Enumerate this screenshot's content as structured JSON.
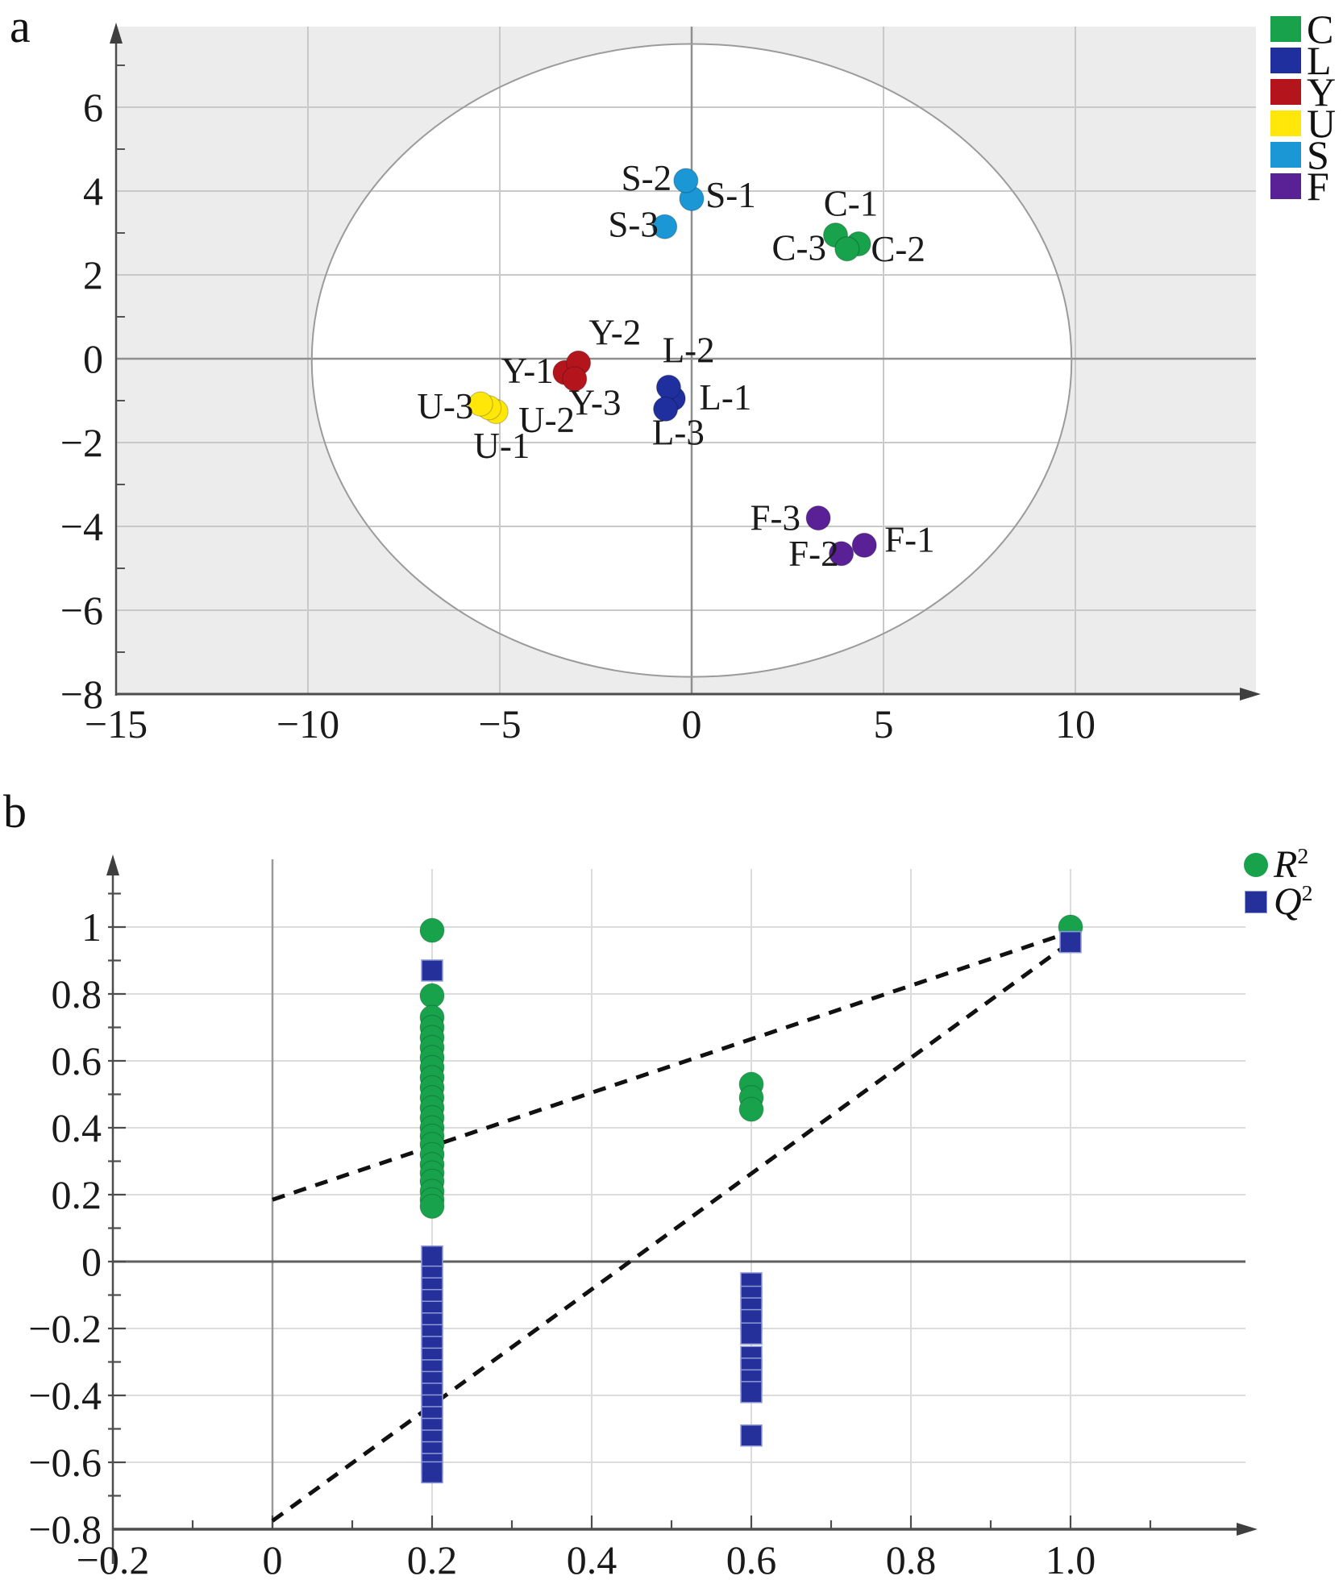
{
  "chart_data": [
    {
      "id": "panel_a",
      "type": "scatter",
      "panel_label": "a",
      "description": "PLS-DA score scatter plot with Hotelling T2 ellipse",
      "axes": {
        "xlim": [
          -15,
          14.5
        ],
        "ylim": [
          -8,
          7.9
        ],
        "x_ticks": [
          "−15",
          "−10",
          "−5",
          "0",
          "5",
          "10"
        ],
        "x_tick_values": [
          -15,
          -10,
          -5,
          0,
          5,
          10
        ],
        "y_ticks": [
          "6",
          "4",
          "2",
          "0",
          "−2",
          "−4",
          "−6",
          "−8"
        ],
        "y_tick_values": [
          6,
          4,
          2,
          0,
          -2,
          -4,
          -6,
          -8
        ],
        "grid": true,
        "plot_background": "#ececec"
      },
      "hotelling_ellipse": {
        "cx": 0,
        "cy": -0.04,
        "rx": 9.9,
        "ry": 7.55
      },
      "legend_position": "top-right-outside",
      "legend": [
        {
          "label": "C",
          "color": "#17a24b"
        },
        {
          "label": "L",
          "color": "#1f309e"
        },
        {
          "label": "Y",
          "color": "#b4151d"
        },
        {
          "label": "U",
          "color": "#ffe70a"
        },
        {
          "label": "S",
          "color": "#1b97d5"
        },
        {
          "label": "F",
          "color": "#5a2196"
        }
      ],
      "series": [
        {
          "name": "C",
          "color": "#17a24b",
          "points": [
            {
              "label": "C-1",
              "x": 3.75,
              "y": 2.95,
              "lx": 4.15,
              "ly": 3.72
            },
            {
              "label": "C-2",
              "x": 4.35,
              "y": 2.74,
              "lx": 5.38,
              "ly": 2.63
            },
            {
              "label": "C-3",
              "x": 4.05,
              "y": 2.62,
              "lx": 2.8,
              "ly": 2.66
            }
          ]
        },
        {
          "name": "L",
          "color": "#1f309e",
          "points": [
            {
              "label": "L-1",
              "x": -0.48,
              "y": -0.95,
              "lx": 0.88,
              "ly": -0.9
            },
            {
              "label": "L-2",
              "x": -0.6,
              "y": -0.68,
              "lx": -0.08,
              "ly": 0.22
            },
            {
              "label": "L-3",
              "x": -0.68,
              "y": -1.2,
              "lx": -0.35,
              "ly": -1.74
            }
          ]
        },
        {
          "name": "Y",
          "color": "#b4151d",
          "points": [
            {
              "label": "Y-1",
              "x": -3.3,
              "y": -0.33,
              "lx": -4.28,
              "ly": -0.27
            },
            {
              "label": "Y-2",
              "x": -2.95,
              "y": -0.1,
              "lx": -2.0,
              "ly": 0.64
            },
            {
              "label": "Y-3",
              "x": -3.05,
              "y": -0.48,
              "lx": -2.52,
              "ly": -1.03
            }
          ]
        },
        {
          "name": "U",
          "color": "#ffe70a",
          "points": [
            {
              "label": "U-1",
              "x": -5.1,
              "y": -1.26,
              "lx": -4.95,
              "ly": -2.06
            },
            {
              "label": "U-2",
              "x": -5.28,
              "y": -1.17,
              "lx": -3.78,
              "ly": -1.44
            },
            {
              "label": "U-3",
              "x": -5.5,
              "y": -1.08,
              "lx": -6.42,
              "ly": -1.12
            }
          ]
        },
        {
          "name": "S",
          "color": "#1b97d5",
          "points": [
            {
              "label": "S-1",
              "x": 0.0,
              "y": 3.82,
              "lx": 1.02,
              "ly": 3.92
            },
            {
              "label": "S-2",
              "x": -0.15,
              "y": 4.25,
              "lx": -1.18,
              "ly": 4.33
            },
            {
              "label": "S-3",
              "x": -0.7,
              "y": 3.15,
              "lx": -1.52,
              "ly": 3.22
            }
          ]
        },
        {
          "name": "F",
          "color": "#5a2196",
          "points": [
            {
              "label": "F-1",
              "x": 4.5,
              "y": -4.45,
              "lx": 5.68,
              "ly": -4.3
            },
            {
              "label": "F-2",
              "x": 3.9,
              "y": -4.65,
              "lx": 3.18,
              "ly": -4.63
            },
            {
              "label": "F-3",
              "x": 3.3,
              "y": -3.8,
              "lx": 2.18,
              "ly": -3.78
            }
          ]
        }
      ]
    },
    {
      "id": "panel_b",
      "type": "scatter",
      "panel_label": "b",
      "description": "Permutation test validation plot (R2 and Q2 vs correlation)",
      "axes": {
        "xlim": [
          -0.2,
          1.18
        ],
        "ylim": [
          -0.8,
          1.12
        ],
        "x_ticks": [
          "−0.2",
          "0",
          "0.2",
          "0.4",
          "0.6",
          "0.8",
          "1.0"
        ],
        "x_tick_values": [
          -0.2,
          0,
          0.2,
          0.4,
          0.6,
          0.8,
          1.0
        ],
        "y_ticks": [
          "1",
          "0.8",
          "0.6",
          "0.4",
          "0.2",
          "0",
          "−0.2",
          "−0.4",
          "−0.6",
          "−0.8"
        ],
        "y_tick_values": [
          1,
          0.8,
          0.6,
          0.4,
          0.2,
          0,
          -0.2,
          -0.4,
          -0.6,
          -0.8
        ],
        "grid": true,
        "plot_background": "#ffffff"
      },
      "legend_position": "top-right-outside",
      "legend": [
        {
          "label": "R",
          "sup": "2",
          "marker": "circle",
          "color": "#17a24b"
        },
        {
          "label": "Q",
          "sup": "2",
          "marker": "square",
          "color": "#26309b"
        }
      ],
      "series": [
        {
          "name": "R2",
          "marker": "circle",
          "color": "#17a24b",
          "points": [
            [
              0.2,
              0.99
            ],
            [
              0.2,
              0.795
            ],
            [
              0.2,
              0.73
            ],
            [
              0.2,
              0.7
            ],
            [
              0.2,
              0.67
            ],
            [
              0.2,
              0.64
            ],
            [
              0.2,
              0.61
            ],
            [
              0.2,
              0.58
            ],
            [
              0.2,
              0.55
            ],
            [
              0.2,
              0.52
            ],
            [
              0.2,
              0.49
            ],
            [
              0.2,
              0.46
            ],
            [
              0.2,
              0.43
            ],
            [
              0.2,
              0.4
            ],
            [
              0.2,
              0.375
            ],
            [
              0.2,
              0.35
            ],
            [
              0.2,
              0.32
            ],
            [
              0.2,
              0.29
            ],
            [
              0.2,
              0.265
            ],
            [
              0.2,
              0.24
            ],
            [
              0.2,
              0.21
            ],
            [
              0.2,
              0.185
            ],
            [
              0.2,
              0.165
            ],
            [
              0.6,
              0.53
            ],
            [
              0.6,
              0.49
            ],
            [
              0.6,
              0.455
            ],
            [
              1.0,
              1.0
            ]
          ]
        },
        {
          "name": "Q2",
          "marker": "square",
          "color": "#26309b",
          "points": [
            [
              0.2,
              0.87
            ],
            [
              0.2,
              0.015
            ],
            [
              0.2,
              -0.045
            ],
            [
              0.2,
              -0.08
            ],
            [
              0.2,
              -0.115
            ],
            [
              0.2,
              -0.15
            ],
            [
              0.2,
              -0.185
            ],
            [
              0.2,
              -0.22
            ],
            [
              0.2,
              -0.255
            ],
            [
              0.2,
              -0.29
            ],
            [
              0.2,
              -0.325
            ],
            [
              0.2,
              -0.36
            ],
            [
              0.2,
              -0.395
            ],
            [
              0.2,
              -0.43
            ],
            [
              0.2,
              -0.465
            ],
            [
              0.2,
              -0.5
            ],
            [
              0.2,
              -0.535
            ],
            [
              0.2,
              -0.57
            ],
            [
              0.2,
              -0.605
            ],
            [
              0.2,
              -0.63
            ],
            [
              0.6,
              -0.065
            ],
            [
              0.6,
              -0.105
            ],
            [
              0.6,
              -0.14
            ],
            [
              0.6,
              -0.175
            ],
            [
              0.6,
              -0.215
            ],
            [
              0.6,
              -0.285
            ],
            [
              0.6,
              -0.32
            ],
            [
              0.6,
              -0.355
            ],
            [
              0.6,
              -0.39
            ],
            [
              0.6,
              -0.52
            ],
            [
              1.0,
              0.955
            ]
          ]
        }
      ],
      "regression_lines": [
        {
          "series": "R2",
          "x1": 0,
          "y1": 0.185,
          "x2": 1.0,
          "y2": 0.985
        },
        {
          "series": "Q2",
          "x1": 0,
          "y1": -0.775,
          "x2": 1.0,
          "y2": 0.955
        }
      ]
    }
  ]
}
